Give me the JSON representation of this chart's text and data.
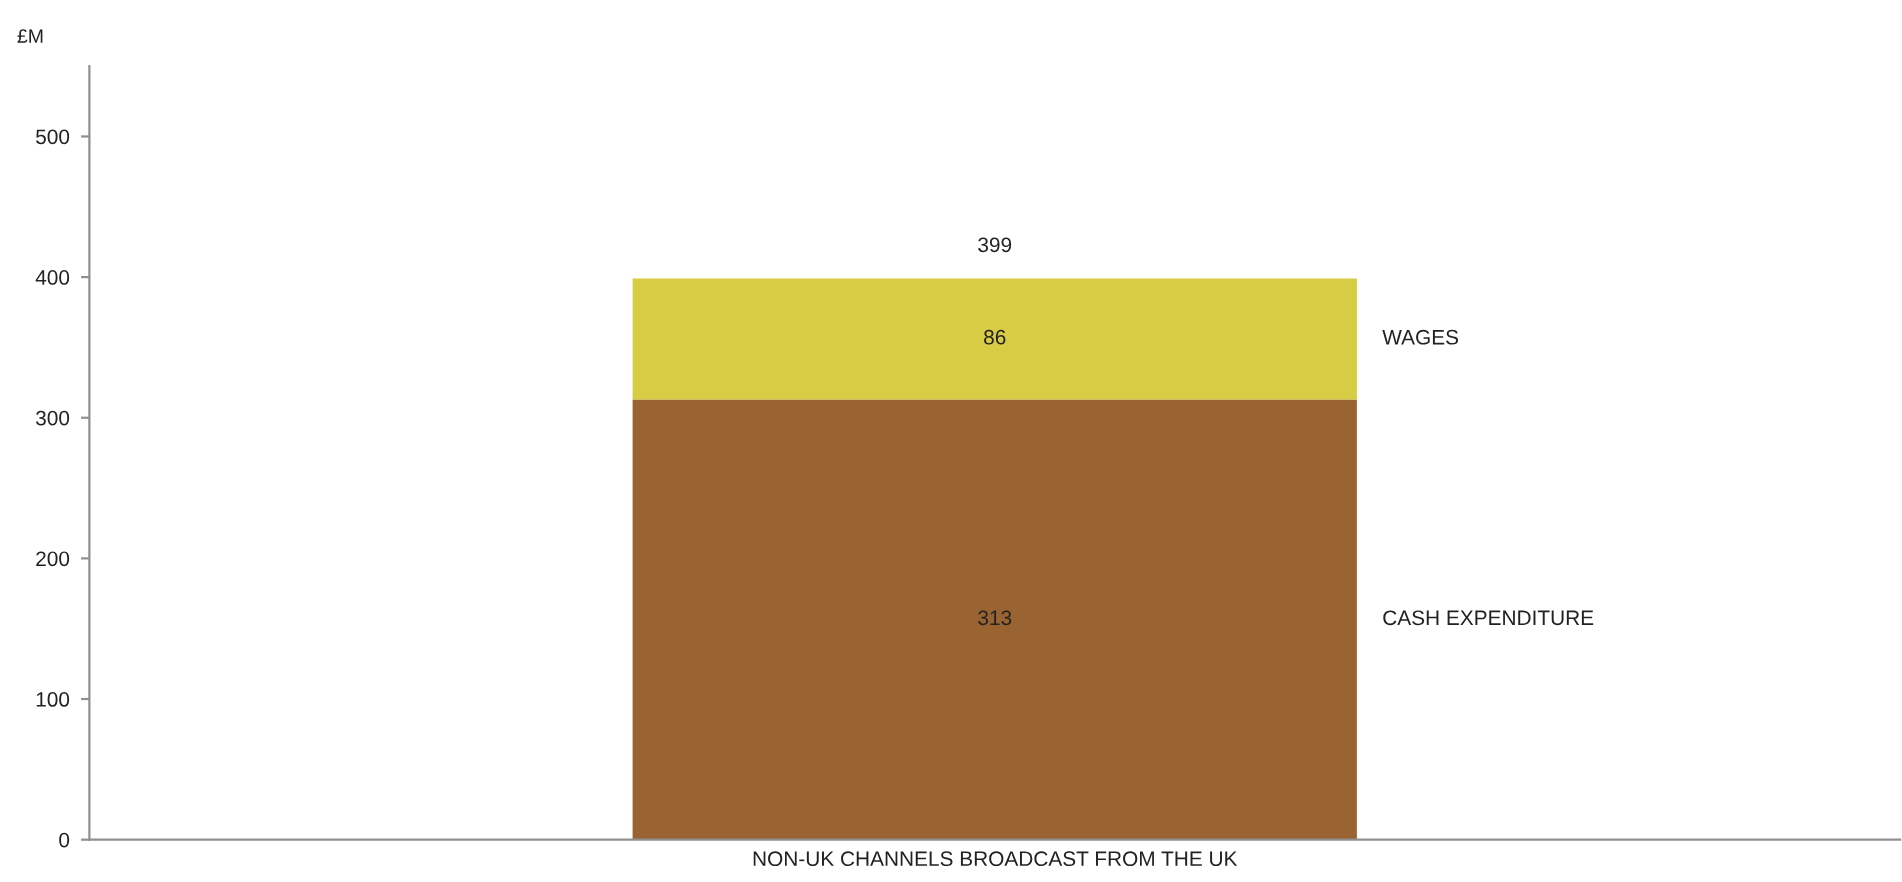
{
  "chart_data": {
    "type": "bar",
    "ylabel": "£M",
    "categories": [
      "NON-UK CHANNELS BROADCAST FROM THE UK"
    ],
    "stacked": true,
    "series": [
      {
        "name": "CASH EXPENDITURE",
        "color": "#9a6432",
        "values": [
          313
        ]
      },
      {
        "name": "WAGES",
        "color": "#d8cc45",
        "values": [
          86
        ]
      }
    ],
    "data_labels": true,
    "totals": [
      "399"
    ],
    "ylim": [
      0,
      550
    ],
    "yticks": [
      0,
      100,
      200,
      300,
      400,
      500
    ],
    "grid": false
  }
}
